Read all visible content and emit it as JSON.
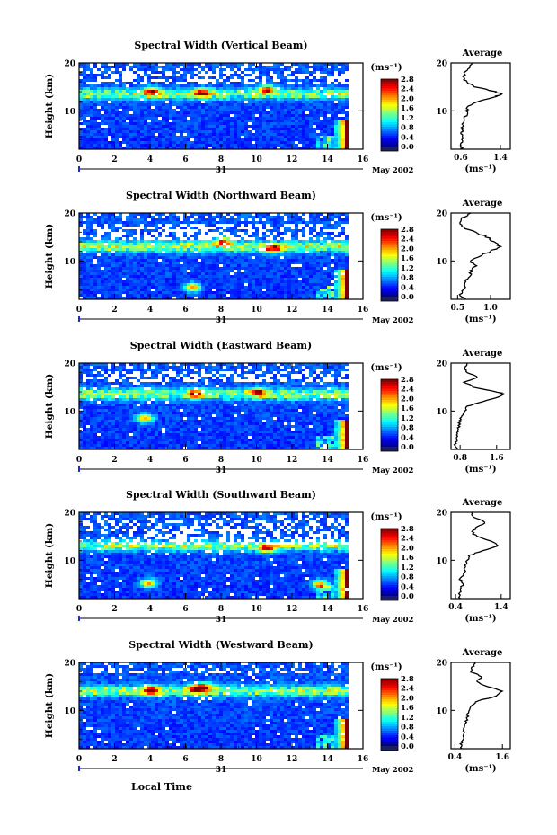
{
  "figure": {
    "xlabel": "Local Time",
    "date_label": "May 2002",
    "day_label": "31",
    "colorbar_unit": "(ms⁻¹)",
    "avg_unit": "(ms⁻¹)",
    "avg_title": "Average",
    "ylabel": "Height (km)"
  },
  "chart_data": [
    {
      "type": "heatmap",
      "title": "Spectral Width (Vertical Beam)",
      "xlabel": "Local Time",
      "ylabel": "Height (km)",
      "xticks": [
        "0",
        "2",
        "4",
        "6",
        "8",
        "10",
        "12",
        "14",
        "16"
      ],
      "yticks": [
        "10",
        "20"
      ],
      "xlim": [
        0,
        16
      ],
      "ylim": [
        2,
        20
      ],
      "colorbar": {
        "unit": "(ms⁻¹)",
        "ticks": [
          "0.0",
          "0.4",
          "0.8",
          "1.2",
          "1.6",
          "2.0",
          "2.4",
          "2.8"
        ],
        "range": [
          0,
          2.8
        ]
      },
      "features": {
        "trop_height_km": 13.5,
        "trop_width": 1.0,
        "hot_spots": [
          {
            "t": 4.0,
            "h": 14
          },
          {
            "t": 6.8,
            "h": 13.8
          },
          {
            "t": 10.5,
            "h": 14.5
          }
        ],
        "data_end_time": 15.0,
        "upper_gap_km": [
          15.5,
          18.5
        ]
      },
      "average": {
        "title": "Average",
        "xlabel": "(ms⁻¹)",
        "xticks": [
          "0.6",
          "1.4"
        ],
        "xlim": [
          0.4,
          1.6
        ],
        "yticks": [
          "10",
          "20"
        ],
        "profile": [
          [
            2,
            0.62
          ],
          [
            3,
            0.6
          ],
          [
            4,
            0.62
          ],
          [
            5,
            0.63
          ],
          [
            6,
            0.62
          ],
          [
            7,
            0.64
          ],
          [
            8,
            0.66
          ],
          [
            9,
            0.7
          ],
          [
            10,
            0.72
          ],
          [
            11,
            0.76
          ],
          [
            12,
            0.95
          ],
          [
            13,
            1.3
          ],
          [
            13.5,
            1.42
          ],
          [
            14,
            1.3
          ],
          [
            15,
            0.9
          ],
          [
            16,
            0.7
          ],
          [
            17,
            0.66
          ],
          [
            18,
            0.68
          ],
          [
            19,
            0.75
          ],
          [
            20,
            0.82
          ]
        ]
      }
    },
    {
      "type": "heatmap",
      "title": "Spectral Width (Northward Beam)",
      "xlabel": "Local Time",
      "ylabel": "Height (km)",
      "xticks": [
        "0",
        "2",
        "4",
        "6",
        "8",
        "10",
        "12",
        "14",
        "16"
      ],
      "yticks": [
        "10",
        "20"
      ],
      "xlim": [
        0,
        16
      ],
      "ylim": [
        2,
        20
      ],
      "colorbar": {
        "unit": "(ms⁻¹)",
        "ticks": [
          "0.0",
          "0.4",
          "0.8",
          "1.2",
          "1.6",
          "2.0",
          "2.4",
          "2.8"
        ],
        "range": [
          0,
          2.8
        ]
      },
      "features": {
        "trop_height_km": 13.0,
        "trop_width": 1.2,
        "hot_spots": [
          {
            "t": 8.0,
            "h": 14
          },
          {
            "t": 10.8,
            "h": 12.5
          },
          {
            "t": 6.3,
            "h": 4.5
          }
        ],
        "data_end_time": 15.0,
        "upper_gap_km": [
          14.5,
          18.0
        ]
      },
      "average": {
        "title": "Average",
        "xlabel": "(ms⁻¹)",
        "xticks": [
          "0.5",
          "1.0"
        ],
        "xlim": [
          0.4,
          1.3
        ],
        "yticks": [
          "10",
          "20"
        ],
        "profile": [
          [
            2,
            0.6
          ],
          [
            3,
            0.55
          ],
          [
            4,
            0.58
          ],
          [
            5,
            0.6
          ],
          [
            6,
            0.62
          ],
          [
            7,
            0.68
          ],
          [
            8,
            0.72
          ],
          [
            9,
            0.78
          ],
          [
            10,
            0.7
          ],
          [
            11,
            0.82
          ],
          [
            12,
            1.0
          ],
          [
            13,
            1.15
          ],
          [
            14,
            1.05
          ],
          [
            15,
            0.95
          ],
          [
            16,
            0.75
          ],
          [
            17,
            0.6
          ],
          [
            18,
            0.55
          ],
          [
            19,
            0.58
          ],
          [
            20,
            0.7
          ]
        ]
      }
    },
    {
      "type": "heatmap",
      "title": "Spectral Width (Eastward Beam)",
      "xlabel": "Local Time",
      "ylabel": "Height (km)",
      "xticks": [
        "0",
        "2",
        "4",
        "6",
        "8",
        "10",
        "12",
        "14",
        "16"
      ],
      "yticks": [
        "10",
        "20"
      ],
      "xlim": [
        0,
        16
      ],
      "ylim": [
        2,
        20
      ],
      "colorbar": {
        "unit": "(ms⁻¹)",
        "ticks": [
          "0.0",
          "0.4",
          "0.8",
          "1.2",
          "1.6",
          "2.0",
          "2.4",
          "2.8"
        ],
        "range": [
          0,
          2.8
        ]
      },
      "features": {
        "trop_height_km": 13.5,
        "trop_width": 1.1,
        "hot_spots": [
          {
            "t": 6.5,
            "h": 13.6
          },
          {
            "t": 10.0,
            "h": 13.8
          },
          {
            "t": 3.6,
            "h": 8.5
          }
        ],
        "data_end_time": 15.0,
        "upper_gap_km": [
          16.0,
          19.0
        ]
      },
      "average": {
        "title": "Average",
        "xlabel": "(ms⁻¹)",
        "xticks": [
          "0.8",
          "1.6"
        ],
        "xlim": [
          0.6,
          1.9
        ],
        "yticks": [
          "10",
          "20"
        ],
        "profile": [
          [
            2,
            0.72
          ],
          [
            3,
            0.7
          ],
          [
            4,
            0.72
          ],
          [
            5,
            0.74
          ],
          [
            6,
            0.75
          ],
          [
            7,
            0.78
          ],
          [
            8,
            0.8
          ],
          [
            9,
            0.84
          ],
          [
            10,
            0.9
          ],
          [
            11,
            0.95
          ],
          [
            12,
            1.3
          ],
          [
            13,
            1.65
          ],
          [
            13.6,
            1.75
          ],
          [
            14,
            1.6
          ],
          [
            15,
            1.1
          ],
          [
            16,
            0.9
          ],
          [
            17,
            1.2
          ],
          [
            18,
            0.95
          ],
          [
            19,
            0.9
          ],
          [
            20,
            0.95
          ]
        ]
      }
    },
    {
      "type": "heatmap",
      "title": "Spectral Width (Southward Beam)",
      "xlabel": "Local Time",
      "ylabel": "Height (km)",
      "xticks": [
        "0",
        "2",
        "4",
        "6",
        "8",
        "10",
        "12",
        "14",
        "16"
      ],
      "yticks": [
        "10",
        "20"
      ],
      "xlim": [
        0,
        16
      ],
      "ylim": [
        2,
        20
      ],
      "colorbar": {
        "unit": "(ms⁻¹)",
        "ticks": [
          "0.0",
          "0.4",
          "0.8",
          "1.2",
          "1.6",
          "2.0",
          "2.4",
          "2.8"
        ],
        "range": [
          0,
          2.8
        ]
      },
      "features": {
        "trop_height_km": 13.0,
        "trop_width": 1.0,
        "hot_spots": [
          {
            "t": 3.8,
            "h": 5.2
          },
          {
            "t": 13.5,
            "h": 5.0
          },
          {
            "t": 10.5,
            "h": 12.5
          }
        ],
        "data_end_time": 15.0,
        "upper_gap_km": [
          13.5,
          18.5
        ]
      },
      "average": {
        "title": "Average",
        "xlabel": "(ms⁻¹)",
        "xticks": [
          "0.4",
          "1.4"
        ],
        "xlim": [
          0.3,
          1.6
        ],
        "yticks": [
          "10",
          "20"
        ],
        "profile": [
          [
            2,
            0.5
          ],
          [
            3,
            0.48
          ],
          [
            4,
            0.52
          ],
          [
            5,
            0.55
          ],
          [
            6,
            0.5
          ],
          [
            7,
            0.58
          ],
          [
            8,
            0.6
          ],
          [
            9,
            0.62
          ],
          [
            10,
            0.65
          ],
          [
            11,
            0.7
          ],
          [
            12,
            1.0
          ],
          [
            13,
            1.35
          ],
          [
            14,
            1.2
          ],
          [
            15,
            0.85
          ],
          [
            16,
            0.75
          ],
          [
            17,
            0.9
          ],
          [
            18,
            1.05
          ],
          [
            19,
            0.8
          ],
          [
            20,
            0.75
          ]
        ]
      }
    },
    {
      "type": "heatmap",
      "title": "Spectral Width (Westward Beam)",
      "xlabel": "Local Time",
      "ylabel": "Height (km)",
      "xticks": [
        "0",
        "2",
        "4",
        "6",
        "8",
        "10",
        "12",
        "14",
        "16"
      ],
      "yticks": [
        "10",
        "20"
      ],
      "xlim": [
        0,
        16
      ],
      "ylim": [
        2,
        20
      ],
      "colorbar": {
        "unit": "(ms⁻¹)",
        "ticks": [
          "0.0",
          "0.4",
          "0.8",
          "1.2",
          "1.6",
          "2.0",
          "2.4",
          "2.8"
        ],
        "range": [
          0,
          2.8
        ]
      },
      "features": {
        "trop_height_km": 14.0,
        "trop_width": 1.1,
        "hot_spots": [
          {
            "t": 4.0,
            "h": 14.2
          },
          {
            "t": 6.5,
            "h": 14.5
          },
          {
            "t": 7.0,
            "h": 14.8
          }
        ],
        "data_end_time": 15.0,
        "upper_gap_km": [
          17.5,
          20.0
        ]
      },
      "average": {
        "title": "Average",
        "xlabel": "(ms⁻¹)",
        "xticks": [
          "0.4",
          "1.6"
        ],
        "xlim": [
          0.3,
          1.8
        ],
        "yticks": [
          "10",
          "20"
        ],
        "profile": [
          [
            2,
            0.58
          ],
          [
            3,
            0.55
          ],
          [
            4,
            0.6
          ],
          [
            5,
            0.62
          ],
          [
            6,
            0.6
          ],
          [
            7,
            0.66
          ],
          [
            8,
            0.7
          ],
          [
            9,
            0.72
          ],
          [
            10,
            0.76
          ],
          [
            11,
            0.8
          ],
          [
            12,
            1.0
          ],
          [
            13,
            1.45
          ],
          [
            14,
            1.6
          ],
          [
            15,
            1.2
          ],
          [
            16,
            0.95
          ],
          [
            17,
            1.1
          ],
          [
            18,
            0.8
          ],
          [
            19,
            0.85
          ],
          [
            20,
            0.9
          ]
        ]
      }
    }
  ]
}
